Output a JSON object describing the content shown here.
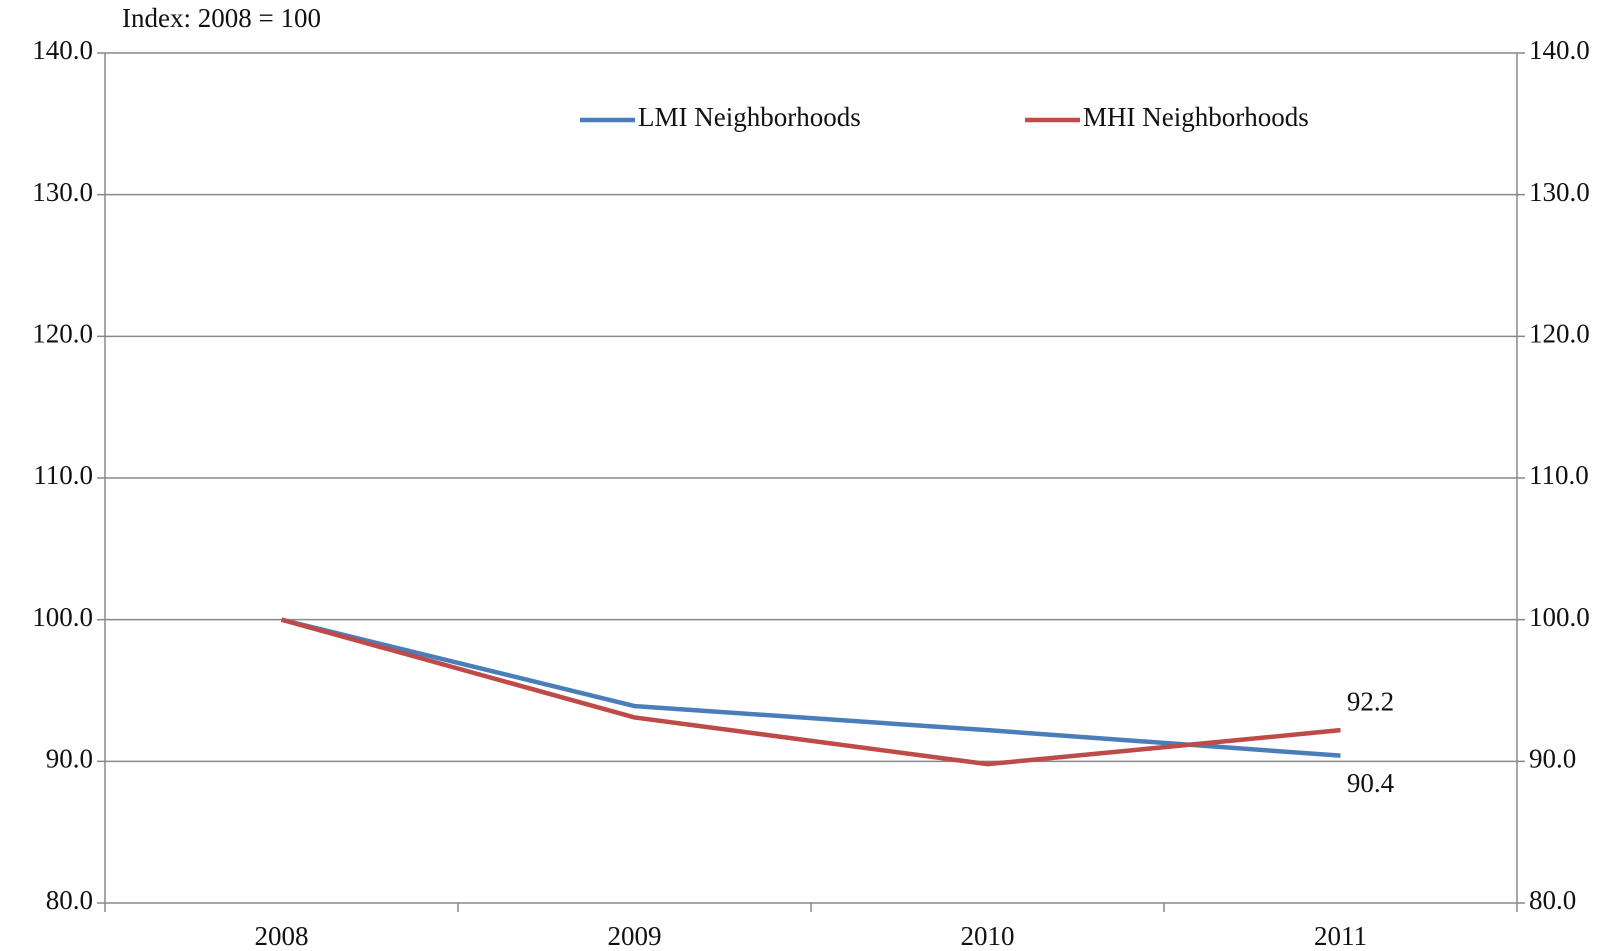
{
  "chart_data": {
    "type": "line",
    "subtitle": "Index: 2008 = 100",
    "categories": [
      "2008",
      "2009",
      "2010",
      "2011"
    ],
    "series": [
      {
        "name": "LMI Neighborhoods",
        "color": "#4a7ebb",
        "values": [
          100,
          93.9,
          92.2,
          90.4
        ],
        "value_labels": [
          null,
          null,
          null,
          "90.4"
        ]
      },
      {
        "name": "MHI Neighborhoods",
        "color": "#be4b48",
        "values": [
          100,
          93.1,
          89.8,
          92.2
        ],
        "value_labels": [
          null,
          null,
          null,
          "92.2"
        ]
      }
    ],
    "ylim": [
      80,
      140
    ],
    "yticks": [
      {
        "value": 80,
        "label": "80.0"
      },
      {
        "value": 90,
        "label": "90.0"
      },
      {
        "value": 100,
        "label": "100.0"
      },
      {
        "value": 110,
        "label": "110.0"
      },
      {
        "value": 120,
        "label": "120.0"
      },
      {
        "value": 130,
        "label": "130.0"
      },
      {
        "value": 140,
        "label": "140.0"
      }
    ],
    "y2lim": [
      80,
      140
    ],
    "y2ticks": [
      {
        "value": 80,
        "label": "80.0"
      },
      {
        "value": 90,
        "label": "90.0"
      },
      {
        "value": 100,
        "label": "100.0"
      },
      {
        "value": 110,
        "label": "110.0"
      },
      {
        "value": 120,
        "label": "120.0"
      },
      {
        "value": 130,
        "label": "130.0"
      },
      {
        "value": 140,
        "label": "140.0"
      }
    ],
    "grid": true,
    "legend": "top"
  }
}
